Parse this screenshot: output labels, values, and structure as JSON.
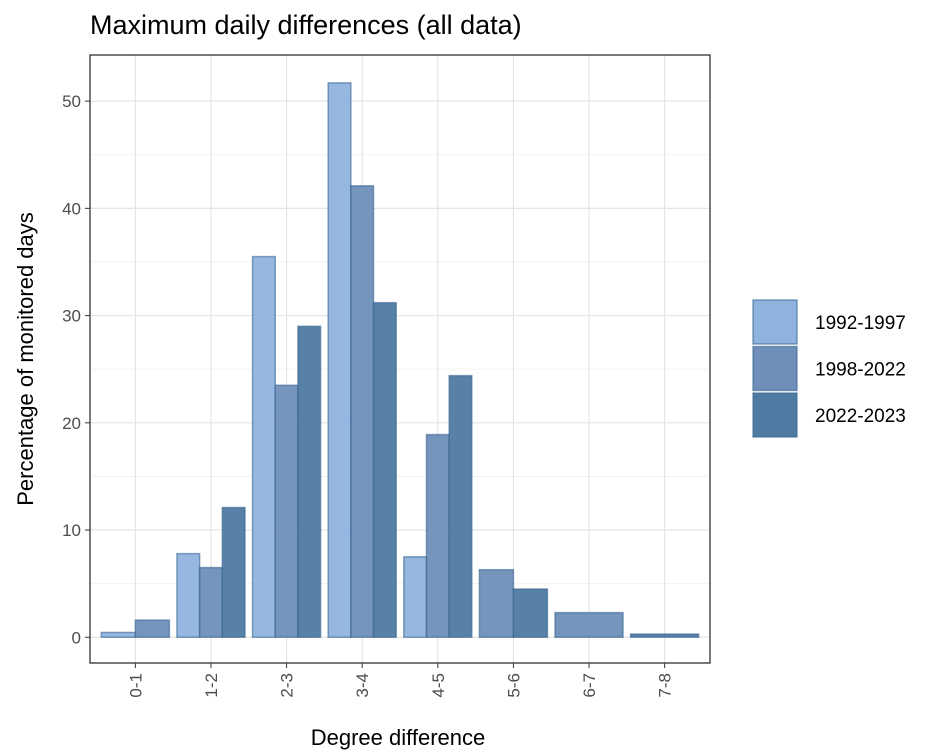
{
  "chart_data": {
    "type": "bar",
    "title": "Maximum daily differences (all data)",
    "x_label": "Degree difference",
    "y_label": "Percentage of monitored days",
    "categories": [
      "0-1",
      "1-2",
      "2-3",
      "3-4",
      "4-5",
      "5-6",
      "6-7",
      "7-8"
    ],
    "series": [
      {
        "name": "1992-1997",
        "color": "#8fb3de",
        "values": [
          0.45,
          7.8,
          35.5,
          51.7,
          7.5,
          null,
          null,
          null
        ]
      },
      {
        "name": "1998-2022",
        "color": "#6f8fb8",
        "values": [
          1.6,
          6.5,
          23.5,
          42.1,
          18.9,
          6.3,
          2.3,
          null
        ]
      },
      {
        "name": "2022-2023",
        "color": "#4f7aa2",
        "values": [
          null,
          12.1,
          29.0,
          31.2,
          24.4,
          4.5,
          null,
          0.3
        ]
      }
    ],
    "ylim": [
      -2.4,
      54.3
    ],
    "yticks": [
      0,
      10,
      20,
      30,
      40,
      50
    ],
    "grid": true,
    "legend": "right"
  }
}
